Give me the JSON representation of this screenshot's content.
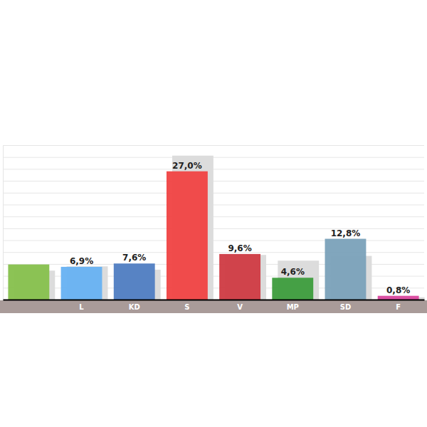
{
  "chart_data": {
    "type": "bar",
    "categories": [
      null,
      "L",
      "KD",
      "S",
      "V",
      "MP",
      "SD",
      "F"
    ],
    "series": [
      {
        "color": "#dcdcdc",
        "values": [
          6.1,
          7.0,
          6.3,
          30.3,
          9.4,
          8.2,
          9.2,
          0.5
        ]
      },
      {
        "colors": [
          "#86c04c",
          "#66b1f2",
          "#4f7dc2",
          "#f04242",
          "#cf3a42",
          "#3c9c3c",
          "#7aa1b9",
          "#d9479e"
        ],
        "values": [
          7.4,
          6.9,
          7.6,
          27.0,
          9.6,
          4.6,
          12.8,
          0.8
        ],
        "value_labels": [
          null,
          "6,9%",
          "7,6%",
          "27,0%",
          "9,6%",
          "4,6%",
          "12,8%",
          "0,8%"
        ]
      }
    ],
    "ylim": [
      0,
      32.5
    ],
    "yticks": [
      0,
      2.5,
      5,
      7.5,
      10,
      12.5,
      15,
      17.5,
      20,
      22.5,
      25,
      27.5,
      30,
      32.5
    ],
    "grid": true,
    "data_labels": true,
    "tick_labels": false
  }
}
